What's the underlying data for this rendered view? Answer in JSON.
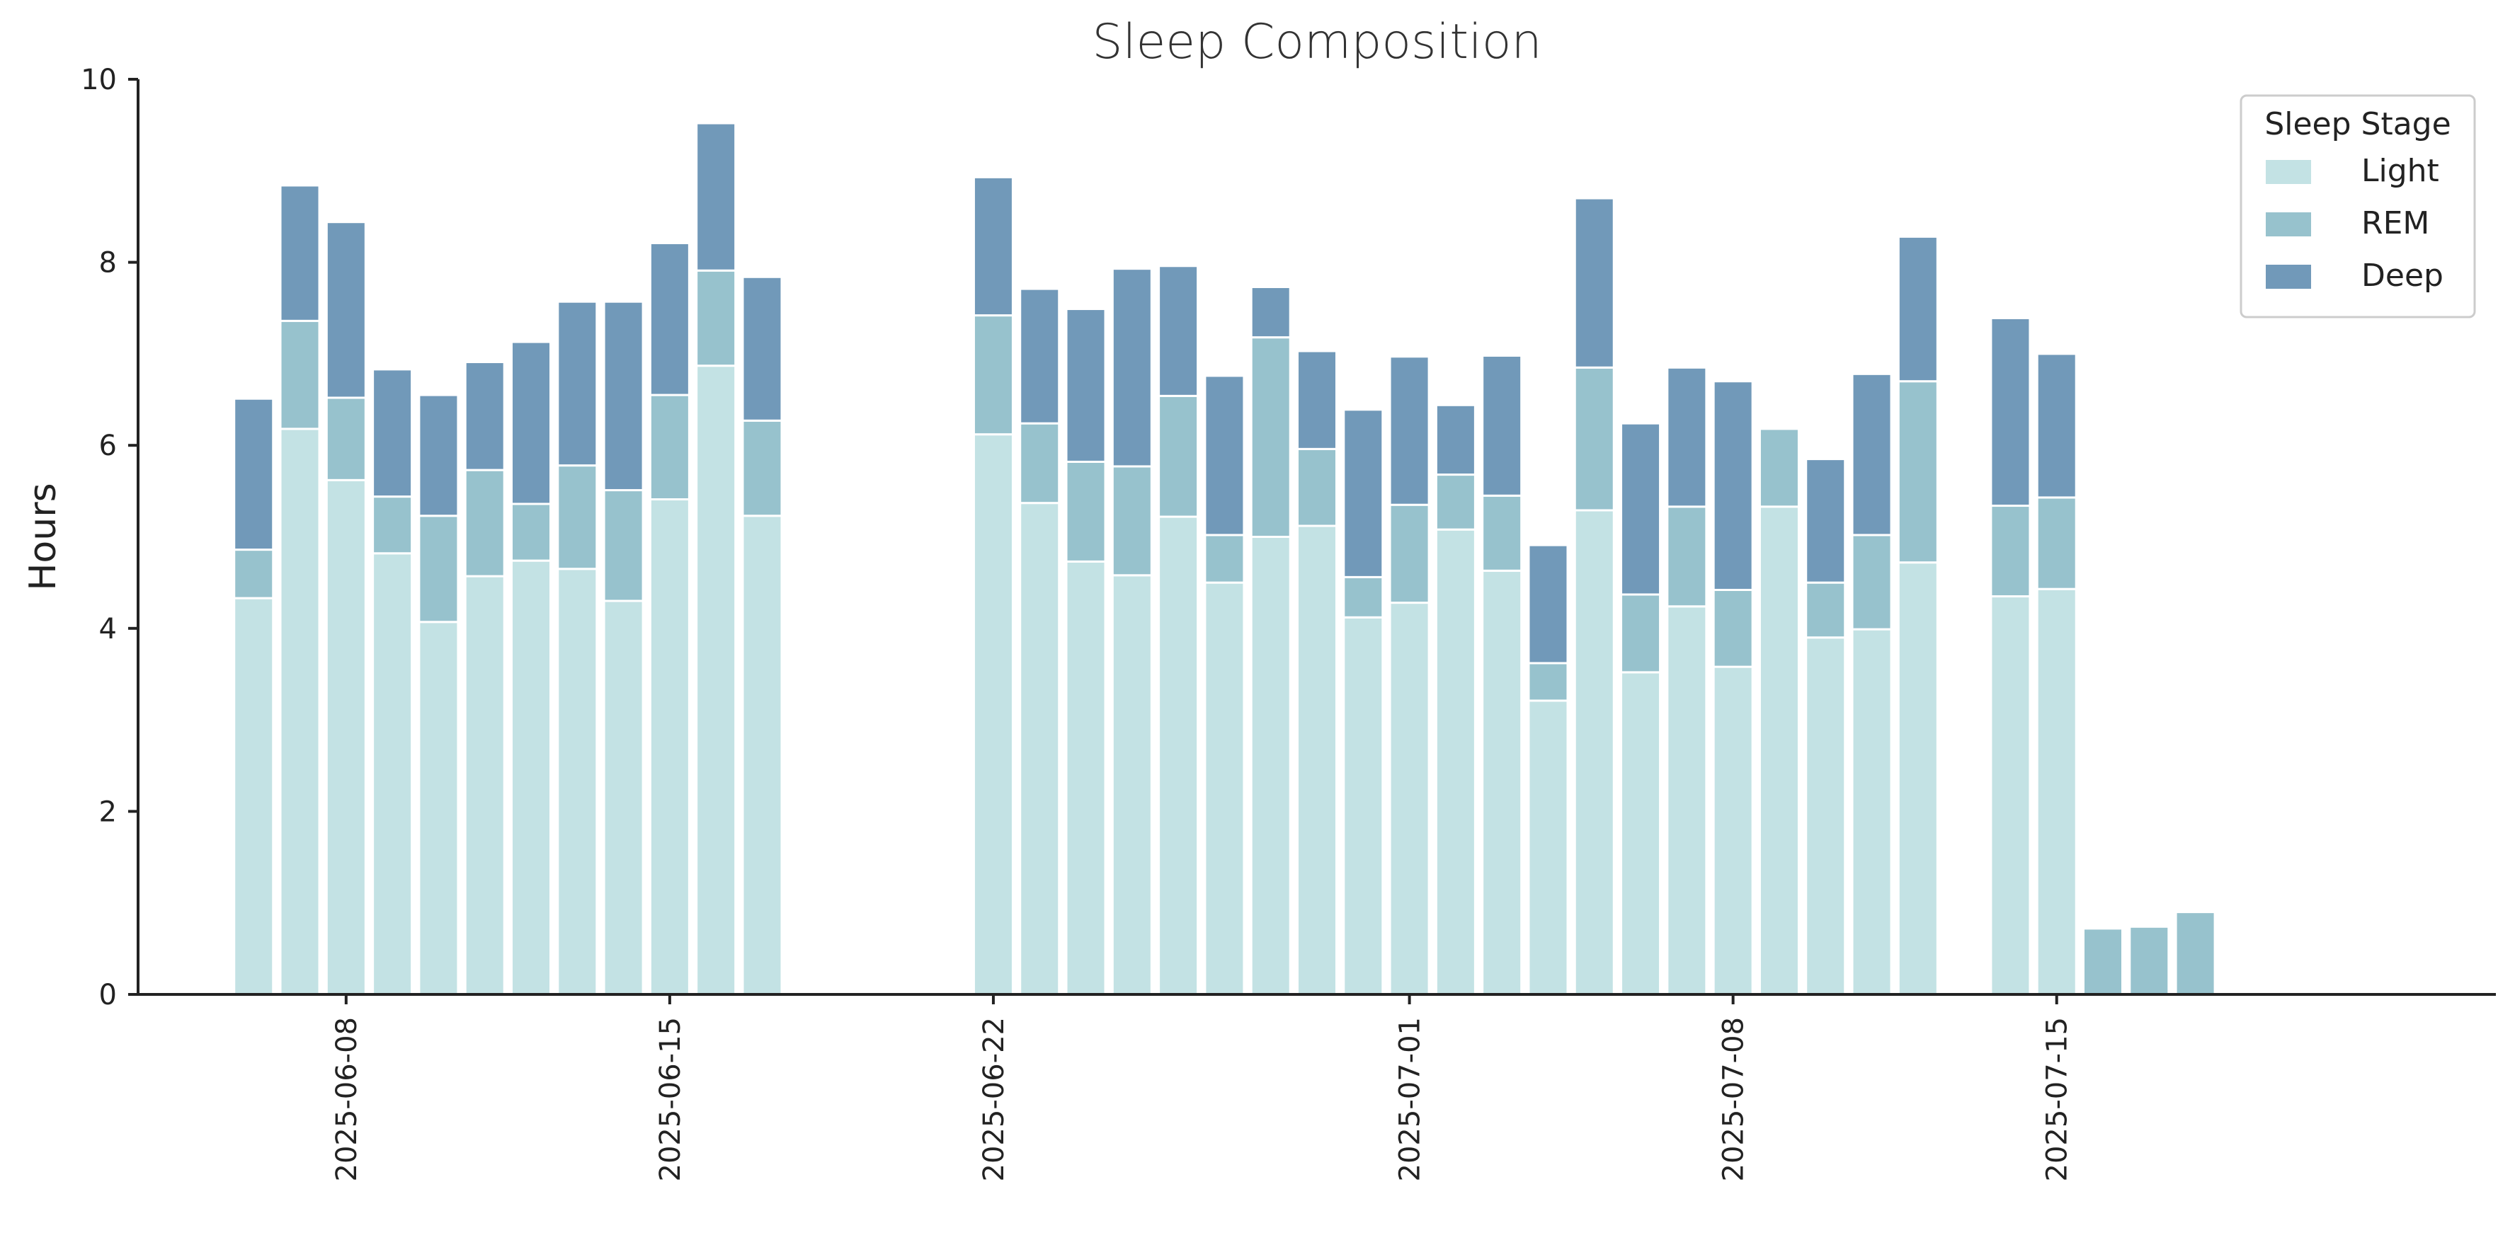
{
  "chart_data": {
    "type": "bar",
    "stacked": true,
    "title": "Sleep Composition",
    "xlabel": "",
    "ylabel": "Hours",
    "ylim": [
      0,
      10
    ],
    "yticks": [
      0,
      2,
      4,
      6,
      8,
      10
    ],
    "x_range": [
      "2025-06-03T12:00",
      "2025-07-24T12:00"
    ],
    "xtick_labels": [
      "2025-06-08",
      "2025-06-15",
      "2025-06-22",
      "2025-07-01",
      "2025-07-08",
      "2025-07-15"
    ],
    "legend": {
      "title": "Sleep Stage",
      "position": "top-right"
    },
    "grid": false,
    "dates": [
      "2025-06-06",
      "2025-06-07",
      "2025-06-08",
      "2025-06-09",
      "2025-06-10",
      "2025-06-11",
      "2025-06-12",
      "2025-06-13",
      "2025-06-14",
      "2025-06-15",
      "2025-06-16",
      "2025-06-17",
      "2025-06-22",
      "2025-06-23",
      "2025-06-24",
      "2025-06-25",
      "2025-06-26",
      "2025-06-27",
      "2025-06-28",
      "2025-06-29",
      "2025-06-30",
      "2025-07-01",
      "2025-07-02",
      "2025-07-03",
      "2025-07-04",
      "2025-07-05",
      "2025-07-06",
      "2025-07-07",
      "2025-07-08",
      "2025-07-09",
      "2025-07-10",
      "2025-07-11",
      "2025-07-12",
      "2025-07-14",
      "2025-07-15",
      "2025-07-16",
      "2025-07-17",
      "2025-07-18"
    ],
    "series": [
      {
        "name": "Light",
        "color": "#c3e2e4",
        "values": [
          4.33,
          6.18,
          5.62,
          4.82,
          4.07,
          4.57,
          4.74,
          4.65,
          4.3,
          5.41,
          6.87,
          5.23,
          6.12,
          5.37,
          4.73,
          4.58,
          5.22,
          4.5,
          5.0,
          5.12,
          4.12,
          4.28,
          5.08,
          4.63,
          3.21,
          5.29,
          3.52,
          4.24,
          3.58,
          5.33,
          3.9,
          3.99,
          4.72,
          4.35,
          4.43,
          0,
          0,
          0
        ]
      },
      {
        "name": "REM",
        "color": "#97c2cd",
        "values": [
          0.53,
          1.18,
          0.9,
          0.62,
          1.16,
          1.16,
          0.62,
          1.13,
          1.21,
          1.14,
          1.04,
          1.04,
          1.3,
          0.87,
          1.09,
          1.19,
          1.32,
          0.52,
          2.18,
          0.84,
          0.44,
          1.07,
          0.6,
          0.82,
          0.41,
          1.56,
          0.85,
          1.09,
          0.84,
          0.85,
          0.6,
          1.03,
          1.98,
          0.99,
          1.0,
          0.72,
          0.74,
          0.9
        ]
      },
      {
        "name": "Deep",
        "color": "#7199b9",
        "values": [
          1.65,
          1.48,
          1.92,
          1.39,
          1.32,
          1.18,
          1.77,
          1.79,
          2.06,
          1.66,
          1.61,
          1.57,
          1.51,
          1.47,
          1.67,
          2.16,
          1.42,
          1.74,
          0.55,
          1.07,
          1.83,
          1.62,
          0.76,
          1.53,
          1.29,
          1.85,
          1.87,
          1.52,
          2.28,
          0,
          1.35,
          1.76,
          1.58,
          2.05,
          1.57,
          0,
          0,
          0
        ]
      }
    ]
  }
}
